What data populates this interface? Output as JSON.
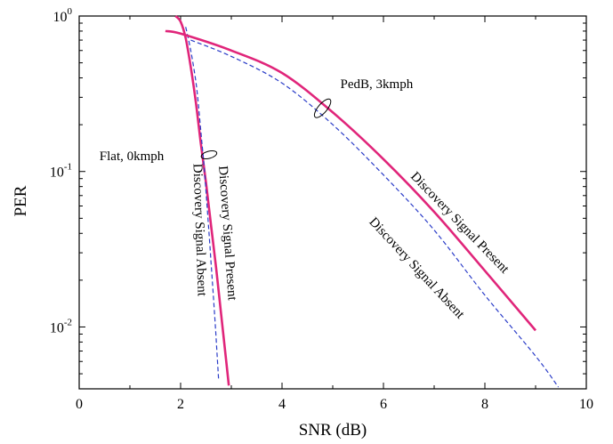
{
  "chart_data": {
    "type": "line",
    "title": "",
    "xlabel": "SNR (dB)",
    "ylabel": "PER",
    "xlim": [
      0,
      10
    ],
    "ylim": [
      0.004,
      1
    ],
    "yscale": "log",
    "grid": false,
    "x_ticks": [
      "0",
      "2",
      "4",
      "6",
      "8",
      "10"
    ],
    "y_ticks": [
      {
        "base": "10",
        "exp": "0"
      },
      {
        "base": "10",
        "exp": "-1"
      },
      {
        "base": "10",
        "exp": "-2"
      }
    ],
    "series": [
      {
        "group": "Flat, 0kmph",
        "name": "Discovery Signal Present",
        "color": "#e0257a",
        "style": "solid",
        "x": [
          1.9,
          2.0,
          2.1,
          2.2,
          2.3,
          2.4,
          2.5,
          2.6,
          2.7,
          2.8,
          2.9,
          2.95
        ],
        "y": [
          1.0,
          0.92,
          0.72,
          0.47,
          0.28,
          0.15,
          0.085,
          0.045,
          0.024,
          0.012,
          0.006,
          0.0042
        ]
      },
      {
        "group": "Flat, 0kmph",
        "name": "Discovery Signal Absent",
        "color": "#2a3cc8",
        "style": "dashed",
        "x": [
          2.1,
          2.2,
          2.3,
          2.35,
          2.4,
          2.45,
          2.5,
          2.55,
          2.6,
          2.65,
          2.7,
          2.75
        ],
        "y": [
          0.85,
          0.6,
          0.38,
          0.27,
          0.18,
          0.12,
          0.075,
          0.045,
          0.026,
          0.015,
          0.0085,
          0.0045
        ]
      },
      {
        "group": "PedB, 3kmph",
        "name": "Discovery Signal Present",
        "color": "#e0257a",
        "style": "solid",
        "x": [
          1.7,
          2,
          3,
          4,
          5,
          6,
          7,
          8,
          9
        ],
        "y": [
          0.8,
          0.77,
          0.6,
          0.43,
          0.24,
          0.12,
          0.055,
          0.023,
          0.0095
        ]
      },
      {
        "group": "PedB, 3kmph",
        "name": "Discovery Signal Absent",
        "color": "#2a3cc8",
        "style": "dashed",
        "x": [
          2.2,
          3,
          4,
          5,
          6,
          7,
          8,
          9,
          9.45
        ],
        "y": [
          0.7,
          0.55,
          0.37,
          0.2,
          0.095,
          0.042,
          0.016,
          0.0065,
          0.0041
        ]
      }
    ],
    "annotations": [
      {
        "text": "Flat, 0kmph",
        "x": 0.4,
        "y": 0.118
      },
      {
        "text": "PedB, 3kmph",
        "x": 5.15,
        "y": 0.345
      },
      {
        "text": "Discovery Signal Absent",
        "x": 2.3,
        "y": 0.042,
        "rotation": 88
      },
      {
        "text": "Discovery Signal Present",
        "x": 2.85,
        "y": 0.04,
        "rotation": 86
      },
      {
        "text": "Discovery Signal Present",
        "x": 7.45,
        "y": 0.045,
        "rotation": 46
      },
      {
        "text": "Discovery Signal Absent",
        "x": 6.6,
        "y": 0.023,
        "rotation": 47
      }
    ]
  }
}
